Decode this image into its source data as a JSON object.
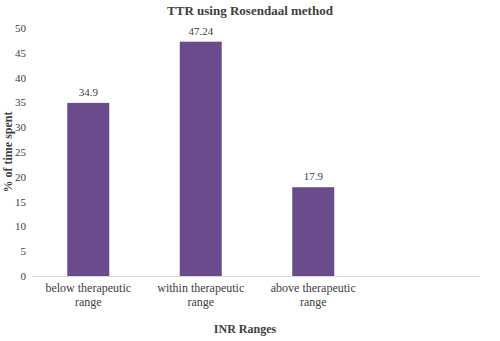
{
  "chart_data": {
    "type": "bar",
    "title": "TTR using Rosendaal method",
    "x_label": "INR Ranges",
    "y_label": "% of time spent",
    "categories": [
      "below therapeutic range",
      "within therapeutic range",
      "above therapeutic range"
    ],
    "values": [
      34.9,
      47.24,
      17.9
    ],
    "color": "#6a4c8c",
    "ylim": [
      0,
      50
    ],
    "yticks": [
      0,
      5,
      10,
      15,
      20,
      25,
      30,
      35,
      40,
      45,
      50
    ],
    "grid": false,
    "data_labels": true
  }
}
